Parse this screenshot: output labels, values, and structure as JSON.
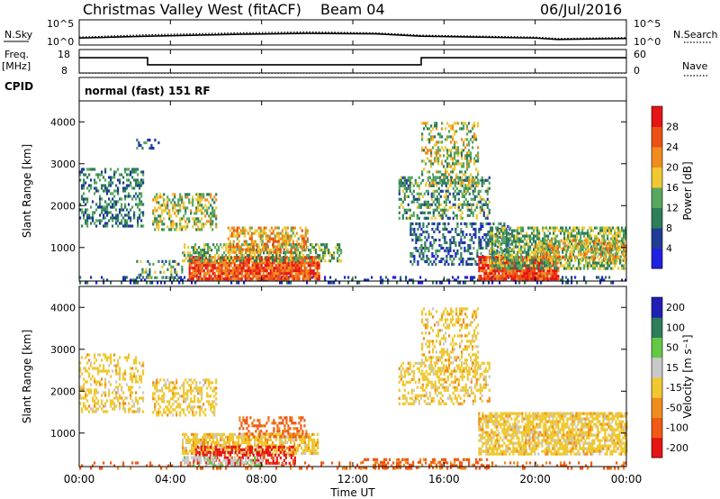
{
  "header": {
    "title": "Christmas Valley West (fitACF)",
    "beam": "Beam 04",
    "date": "06/Jul/2016"
  },
  "side_labels": {
    "nsky": "N.Sky",
    "nsearch": "N.Search",
    "freq": "Freq.",
    "freq_unit": "[MHz]",
    "nave": "Nave",
    "cpid": "CPID",
    "cpid_value": "normal (fast) 151 RF"
  },
  "colors": {
    "power": [
      "#2020e0",
      "#1e3c96",
      "#2e7d5a",
      "#58a860",
      "#f0c830",
      "#f08c1e",
      "#ec5014",
      "#e61414"
    ],
    "velocity": [
      "#e61414",
      "#f05a14",
      "#f08c1e",
      "#f0c830",
      "#c8c8c8",
      "#64c846",
      "#2e7d5a",
      "#2020b4"
    ]
  },
  "chart_data": [
    {
      "type": "line",
      "name": "noise",
      "series": [
        {
          "name": "N.Sky",
          "x": [
            0,
            3,
            7,
            10,
            13,
            15,
            20,
            21,
            24
          ],
          "y": [
            1.3,
            1.7,
            2.1,
            2.3,
            2.2,
            1.7,
            1.3,
            1.0,
            1.2
          ]
        },
        {
          "name": "N.Search",
          "x": [
            0,
            3,
            7,
            10,
            13,
            15,
            20,
            21,
            24
          ],
          "y": [
            1.5,
            2.0,
            2.4,
            2.6,
            2.4,
            1.9,
            1.5,
            1.2,
            1.4
          ]
        }
      ],
      "yticks": [
        "10^5",
        "10^0"
      ],
      "yticks_right": [
        "10^5",
        "10^0"
      ]
    },
    {
      "type": "line",
      "name": "frequency",
      "series": [
        {
          "name": "Freq.",
          "x": [
            0,
            3,
            3,
            15,
            15,
            24
          ],
          "y": [
            14.5,
            14.5,
            11.5,
            11.5,
            14.5,
            14.5
          ]
        },
        {
          "name": "Nave",
          "x": [
            0,
            24
          ],
          "y": [
            18,
            18
          ]
        }
      ],
      "yticks": [
        "18",
        "8"
      ],
      "ylim": [
        8,
        18
      ],
      "yticks_right": [
        "60",
        "0"
      ],
      "y2lim": [
        0,
        60
      ]
    },
    {
      "type": "heatmap",
      "name": "power",
      "ylabel": "Slant Range [km]",
      "ylim": [
        200,
        4500
      ],
      "yticks": [
        1000,
        2000,
        3000,
        4000
      ],
      "colorbar_label": "Power [dB]",
      "colorbar_ticks": [
        4,
        8,
        12,
        16,
        20,
        24,
        28
      ],
      "colorbar_range": [
        0,
        32
      ],
      "regions": [
        {
          "t0": 0,
          "t1": 24,
          "r0": 180,
          "r1": 320,
          "value": 6,
          "density": 0.25
        },
        {
          "t0": 4.8,
          "t1": 10.5,
          "r0": 250,
          "r1": 800,
          "value": 26,
          "density": 0.9
        },
        {
          "t0": 4.5,
          "t1": 11.5,
          "r0": 700,
          "r1": 1100,
          "value": 14,
          "density": 0.5
        },
        {
          "t0": 2.5,
          "t1": 4.5,
          "r0": 300,
          "r1": 700,
          "value": 12,
          "density": 0.35
        },
        {
          "t0": 6.5,
          "t1": 10,
          "r0": 900,
          "r1": 1500,
          "value": 20,
          "density": 0.55
        },
        {
          "t0": 3.2,
          "t1": 6,
          "r0": 1400,
          "r1": 2300,
          "value": 16,
          "density": 0.5
        },
        {
          "t0": 0,
          "t1": 2.8,
          "r0": 1500,
          "r1": 2900,
          "value": 10,
          "density": 0.4
        },
        {
          "t0": 2.5,
          "t1": 3.5,
          "r0": 3300,
          "r1": 3600,
          "value": 8,
          "density": 0.2
        },
        {
          "t0": 14,
          "t1": 18,
          "r0": 1700,
          "r1": 2700,
          "value": 12,
          "density": 0.45
        },
        {
          "t0": 15,
          "t1": 17.5,
          "r0": 2500,
          "r1": 4000,
          "value": 16,
          "density": 0.4
        },
        {
          "t0": 14.5,
          "t1": 19,
          "r0": 600,
          "r1": 1600,
          "value": 8,
          "density": 0.4
        },
        {
          "t0": 17.5,
          "t1": 21,
          "r0": 250,
          "r1": 800,
          "value": 27,
          "density": 0.9
        },
        {
          "t0": 18,
          "t1": 24,
          "r0": 500,
          "r1": 1500,
          "value": 14,
          "density": 0.6
        },
        {
          "t0": 20,
          "t1": 24,
          "r0": 700,
          "r1": 1200,
          "value": 19,
          "density": 0.5
        }
      ]
    },
    {
      "type": "heatmap",
      "name": "velocity",
      "ylabel": "Slant Range [km]",
      "xlabel": "Time UT",
      "ylim": [
        200,
        4500
      ],
      "yticks": [
        1000,
        2000,
        3000,
        4000
      ],
      "xticks": [
        "00:00",
        "04:00",
        "08:00",
        "12:00",
        "16:00",
        "20:00",
        "00:00"
      ],
      "colorbar_label": "Velocity [m s⁻¹]",
      "colorbar_ticks": [
        -200,
        -100,
        -50,
        -15,
        15,
        50,
        100,
        200
      ],
      "regions": [
        {
          "t0": 0,
          "t1": 24,
          "r0": 180,
          "r1": 320,
          "value": -60,
          "density": 0.2
        },
        {
          "t0": 4.5,
          "t1": 10.5,
          "r0": 500,
          "r1": 1000,
          "value": 0,
          "density": 0.75
        },
        {
          "t0": 5,
          "t1": 9.5,
          "r0": 250,
          "r1": 700,
          "value": -110,
          "density": 0.55
        },
        {
          "t0": 4.5,
          "t1": 8,
          "r0": 200,
          "r1": 450,
          "value": 40,
          "density": 0.5
        },
        {
          "t0": 7,
          "t1": 10,
          "r0": 900,
          "r1": 1400,
          "value": -60,
          "density": 0.4
        },
        {
          "t0": 3.2,
          "t1": 6,
          "r0": 1400,
          "r1": 2300,
          "value": 0,
          "density": 0.45
        },
        {
          "t0": 0,
          "t1": 2.8,
          "r0": 1500,
          "r1": 2900,
          "value": 0,
          "density": 0.35
        },
        {
          "t0": 14,
          "t1": 18,
          "r0": 1700,
          "r1": 2700,
          "value": 0,
          "density": 0.4
        },
        {
          "t0": 15,
          "t1": 17.5,
          "r0": 2500,
          "r1": 4000,
          "value": 0,
          "density": 0.35
        },
        {
          "t0": 17.5,
          "t1": 24,
          "r0": 500,
          "r1": 1500,
          "value": 0,
          "density": 0.7
        },
        {
          "t0": 12,
          "t1": 18,
          "r0": 200,
          "r1": 400,
          "value": -60,
          "density": 0.4
        }
      ]
    }
  ]
}
